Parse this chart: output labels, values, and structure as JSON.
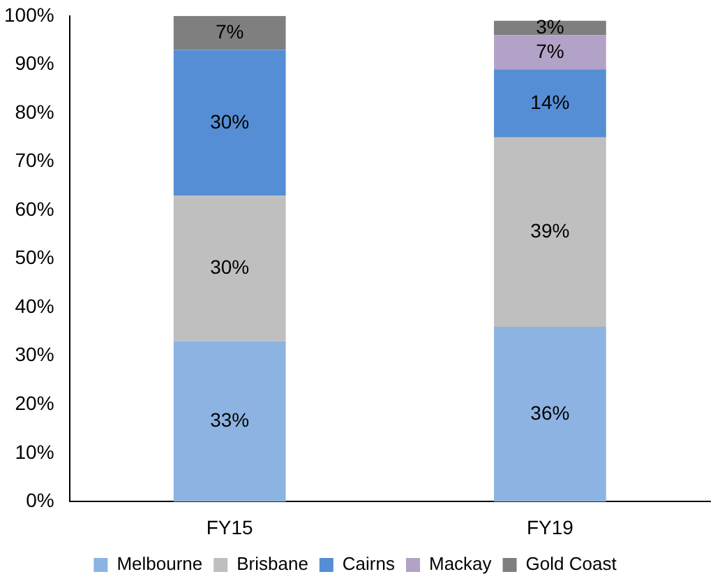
{
  "chart_data": {
    "type": "bar",
    "stacked": true,
    "categories": [
      "FY15",
      "FY19"
    ],
    "series": [
      {
        "name": "Melbourne",
        "color": "#8db3e2",
        "values": [
          33,
          36
        ],
        "value_labels": [
          "33%",
          "36%"
        ]
      },
      {
        "name": "Brisbane",
        "color": "#bfbfbf",
        "values": [
          30,
          39
        ],
        "value_labels": [
          "30%",
          "39%"
        ]
      },
      {
        "name": "Cairns",
        "color": "#558ed5",
        "values": [
          30,
          14
        ],
        "value_labels": [
          "30%",
          "14%"
        ]
      },
      {
        "name": "Mackay",
        "color": "#b3a2c7",
        "values": [
          null,
          7
        ],
        "value_labels": [
          null,
          "7%"
        ]
      },
      {
        "name": "Gold Coast",
        "color": "#7f7f7f",
        "values": [
          7,
          3
        ],
        "value_labels": [
          "7%",
          "3%"
        ]
      }
    ],
    "ylim": [
      0,
      100
    ],
    "yticks": [
      {
        "value": 0,
        "label": "0%"
      },
      {
        "value": 10,
        "label": "10%"
      },
      {
        "value": 20,
        "label": "20%"
      },
      {
        "value": 30,
        "label": "30%"
      },
      {
        "value": 40,
        "label": "40%"
      },
      {
        "value": 50,
        "label": "50%"
      },
      {
        "value": 60,
        "label": "60%"
      },
      {
        "value": 70,
        "label": "70%"
      },
      {
        "value": 80,
        "label": "80%"
      },
      {
        "value": 90,
        "label": "90%"
      },
      {
        "value": 100,
        "label": "100%"
      }
    ],
    "grid": false,
    "legend": "bottom"
  }
}
